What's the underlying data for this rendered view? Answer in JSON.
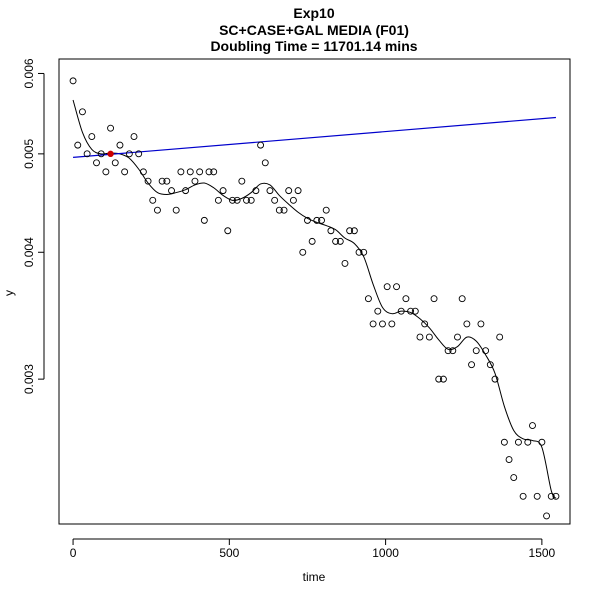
{
  "chart_data": {
    "type": "scatter",
    "title": "Exp10",
    "subtitle": "SC+CASE+GAL MEDIA (F01)",
    "subtitle2": "Doubling Time = 11701.14 mins",
    "xlabel": "time",
    "ylabel": "y",
    "xlim": [
      -45,
      1590
    ],
    "ylim": [
      0.00216,
      0.0062
    ],
    "log_y": true,
    "x_ticks": [
      0,
      500,
      1000,
      1500
    ],
    "x_tick_labels": [
      "0",
      "500",
      "1000",
      "1500"
    ],
    "y_ticks": [
      0.003,
      0.004,
      0.005,
      0.006
    ],
    "y_tick_labels": [
      "0.003",
      "0.004",
      "0.005",
      "0.006"
    ],
    "grid": false,
    "points": {
      "x": [
        0,
        15,
        30,
        45,
        60,
        75,
        90,
        105,
        120,
        135,
        150,
        165,
        180,
        195,
        210,
        225,
        240,
        255,
        270,
        285,
        300,
        315,
        330,
        345,
        360,
        375,
        390,
        405,
        420,
        435,
        450,
        465,
        480,
        495,
        510,
        525,
        540,
        555,
        570,
        585,
        600,
        615,
        630,
        645,
        660,
        675,
        690,
        705,
        720,
        735,
        750,
        765,
        780,
        795,
        810,
        825,
        840,
        855,
        870,
        885,
        900,
        915,
        930,
        945,
        960,
        975,
        990,
        1005,
        1020,
        1035,
        1050,
        1065,
        1080,
        1095,
        1110,
        1125,
        1140,
        1155,
        1170,
        1185,
        1200,
        1215,
        1230,
        1245,
        1260,
        1275,
        1290,
        1305,
        1320,
        1335,
        1350,
        1365,
        1380,
        1395,
        1410,
        1425,
        1440,
        1455,
        1470,
        1485,
        1500,
        1515,
        1530,
        1545
      ],
      "y": [
        0.0059,
        0.0051,
        0.0055,
        0.005,
        0.0052,
        0.0049,
        0.005,
        0.0048,
        0.0053,
        0.0049,
        0.0051,
        0.0048,
        0.005,
        0.0052,
        0.005,
        0.0048,
        0.0047,
        0.0045,
        0.0044,
        0.0047,
        0.0047,
        0.0046,
        0.0044,
        0.0048,
        0.0046,
        0.0048,
        0.0047,
        0.0048,
        0.0043,
        0.0048,
        0.0048,
        0.0045,
        0.0046,
        0.0042,
        0.0045,
        0.0045,
        0.0047,
        0.0045,
        0.0045,
        0.0046,
        0.0051,
        0.0049,
        0.0046,
        0.0045,
        0.0044,
        0.0044,
        0.0046,
        0.0045,
        0.0046,
        0.004,
        0.0043,
        0.0041,
        0.0043,
        0.0043,
        0.0044,
        0.0042,
        0.0041,
        0.0041,
        0.0039,
        0.0042,
        0.0042,
        0.004,
        0.004,
        0.0036,
        0.0034,
        0.0035,
        0.0034,
        0.0037,
        0.0034,
        0.0037,
        0.0035,
        0.0036,
        0.0035,
        0.0035,
        0.0033,
        0.0034,
        0.0033,
        0.0036,
        0.003,
        0.003,
        0.0032,
        0.0032,
        0.0033,
        0.0036,
        0.0034,
        0.0031,
        0.0032,
        0.0034,
        0.0032,
        0.0031,
        0.003,
        0.0033,
        0.0026,
        0.0025,
        0.0024,
        0.0026,
        0.0023,
        0.0026,
        0.0027,
        0.0023,
        0.0026,
        0.0022,
        0.0023,
        0.0023
      ]
    },
    "highlight_point": {
      "x": 120,
      "y": 0.005
    },
    "fit_line": {
      "x": [
        0,
        1545
      ],
      "y": [
        0.00496,
        0.00543
      ],
      "color": "#0000cc"
    },
    "smooth_curve": {
      "x": [
        0,
        30,
        60,
        90,
        120,
        150,
        180,
        210,
        240,
        270,
        300,
        330,
        360,
        390,
        420,
        450,
        480,
        510,
        540,
        570,
        600,
        630,
        660,
        690,
        720,
        750,
        780,
        810,
        840,
        870,
        900,
        930,
        960,
        990,
        1020,
        1050,
        1080,
        1110,
        1140,
        1170,
        1200,
        1230,
        1260,
        1290,
        1320,
        1350,
        1380,
        1410,
        1440,
        1470,
        1500,
        1530,
        1545
      ],
      "y": [
        0.00565,
        0.00525,
        0.00505,
        0.005,
        0.00501,
        0.005,
        0.00495,
        0.00483,
        0.00468,
        0.00458,
        0.00456,
        0.00458,
        0.00461,
        0.00466,
        0.00468,
        0.00463,
        0.00455,
        0.0045,
        0.00452,
        0.00458,
        0.00467,
        0.00466,
        0.00455,
        0.00446,
        0.00438,
        0.00432,
        0.00428,
        0.00425,
        0.00421,
        0.00413,
        0.00408,
        0.00396,
        0.00372,
        0.00353,
        0.00348,
        0.0035,
        0.00349,
        0.00344,
        0.00337,
        0.00328,
        0.00321,
        0.00323,
        0.0033,
        0.00327,
        0.00317,
        0.00304,
        0.00282,
        0.00267,
        0.00262,
        0.00261,
        0.00257,
        0.00233,
        0.00229
      ]
    },
    "colors": {
      "points": "#000000",
      "highlight": "#cc0000",
      "fit_line": "#0000cc",
      "curve": "#000000"
    }
  }
}
